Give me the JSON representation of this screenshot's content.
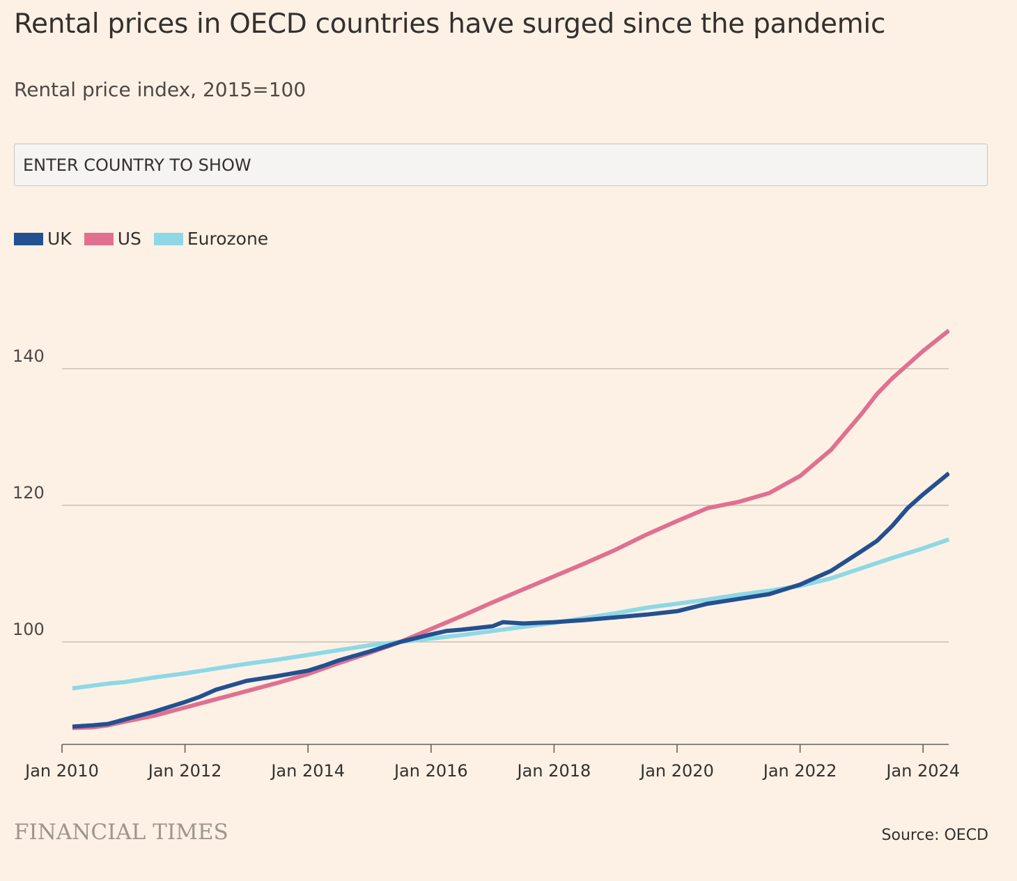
{
  "header": {
    "title": "Rental prices in OECD countries have surged since the pandemic",
    "subtitle": "Rental price index, 2015=100"
  },
  "search": {
    "placeholder": "ENTER COUNTRY TO SHOW"
  },
  "legend": [
    {
      "name": "UK",
      "color": "#235090"
    },
    {
      "name": "US",
      "color": "#e07090"
    },
    {
      "name": "Eurozone",
      "color": "#8ed8e6"
    }
  ],
  "footer": {
    "brand": "FINANCIAL TIMES",
    "source": "Source: OECD"
  },
  "chart_data": {
    "type": "line",
    "title": "Rental prices in OECD countries have surged since the pandemic",
    "subtitle": "Rental price index, 2015=100",
    "xlabel": "",
    "ylabel": "",
    "x_ticks": [
      "Jan 2010",
      "Jan 2012",
      "Jan 2014",
      "Jan 2016",
      "Jan 2018",
      "Jan 2020",
      "Jan 2022",
      "Jan 2024"
    ],
    "x_tick_years": [
      2010,
      2012,
      2014,
      2016,
      2018,
      2020,
      2022,
      2024
    ],
    "y_ticks": [
      100,
      120,
      140
    ],
    "xlim": [
      2010,
      2024.42
    ],
    "ylim": [
      85,
      150
    ],
    "grid": true,
    "legend_position": "top-left",
    "series": [
      {
        "name": "UK",
        "color": "#235090",
        "points": [
          [
            2010.17,
            87.6
          ],
          [
            2010.5,
            87.8
          ],
          [
            2010.75,
            88.0
          ],
          [
            2011.0,
            88.6
          ],
          [
            2011.5,
            89.8
          ],
          [
            2012.0,
            91.2
          ],
          [
            2012.25,
            92.0
          ],
          [
            2012.5,
            93.0
          ],
          [
            2013.0,
            94.3
          ],
          [
            2013.5,
            95.0
          ],
          [
            2014.0,
            95.8
          ],
          [
            2014.25,
            96.5
          ],
          [
            2014.5,
            97.3
          ],
          [
            2015.0,
            98.6
          ],
          [
            2015.5,
            100.0
          ],
          [
            2016.0,
            101.1
          ],
          [
            2016.25,
            101.6
          ],
          [
            2016.5,
            101.8
          ],
          [
            2017.0,
            102.3
          ],
          [
            2017.17,
            102.9
          ],
          [
            2017.5,
            102.7
          ],
          [
            2018.0,
            102.9
          ],
          [
            2018.5,
            103.2
          ],
          [
            2019.0,
            103.6
          ],
          [
            2019.5,
            104.0
          ],
          [
            2020.0,
            104.5
          ],
          [
            2020.5,
            105.6
          ],
          [
            2021.0,
            106.3
          ],
          [
            2021.5,
            107.0
          ],
          [
            2022.0,
            108.4
          ],
          [
            2022.5,
            110.4
          ],
          [
            2023.0,
            113.3
          ],
          [
            2023.25,
            114.8
          ],
          [
            2023.5,
            117.0
          ],
          [
            2023.75,
            119.6
          ],
          [
            2024.0,
            121.6
          ],
          [
            2024.42,
            124.7
          ]
        ]
      },
      {
        "name": "US",
        "color": "#e07090",
        "points": [
          [
            2010.17,
            87.4
          ],
          [
            2010.5,
            87.5
          ],
          [
            2010.75,
            87.8
          ],
          [
            2011.0,
            88.3
          ],
          [
            2011.5,
            89.2
          ],
          [
            2012.0,
            90.4
          ],
          [
            2012.5,
            91.6
          ],
          [
            2013.0,
            92.8
          ],
          [
            2013.5,
            94.0
          ],
          [
            2014.0,
            95.3
          ],
          [
            2014.5,
            96.9
          ],
          [
            2015.0,
            98.4
          ],
          [
            2015.5,
            100.0
          ],
          [
            2016.0,
            101.9
          ],
          [
            2016.5,
            103.8
          ],
          [
            2017.0,
            105.8
          ],
          [
            2017.5,
            107.7
          ],
          [
            2018.0,
            109.6
          ],
          [
            2018.5,
            111.5
          ],
          [
            2019.0,
            113.5
          ],
          [
            2019.5,
            115.7
          ],
          [
            2020.0,
            117.7
          ],
          [
            2020.5,
            119.6
          ],
          [
            2021.0,
            120.5
          ],
          [
            2021.5,
            121.8
          ],
          [
            2022.0,
            124.3
          ],
          [
            2022.5,
            128.1
          ],
          [
            2023.0,
            133.4
          ],
          [
            2023.25,
            136.3
          ],
          [
            2023.5,
            138.6
          ],
          [
            2024.0,
            142.6
          ],
          [
            2024.42,
            145.6
          ]
        ]
      },
      {
        "name": "Eurozone",
        "color": "#8ed8e6",
        "points": [
          [
            2010.17,
            93.2
          ],
          [
            2010.5,
            93.6
          ],
          [
            2010.75,
            93.9
          ],
          [
            2011.0,
            94.1
          ],
          [
            2011.5,
            94.8
          ],
          [
            2012.0,
            95.4
          ],
          [
            2012.5,
            96.1
          ],
          [
            2013.0,
            96.8
          ],
          [
            2013.5,
            97.4
          ],
          [
            2014.0,
            98.1
          ],
          [
            2014.5,
            98.8
          ],
          [
            2015.0,
            99.5
          ],
          [
            2015.5,
            100.0
          ],
          [
            2016.0,
            100.5
          ],
          [
            2016.5,
            101.0
          ],
          [
            2017.0,
            101.6
          ],
          [
            2017.5,
            102.2
          ],
          [
            2018.0,
            102.8
          ],
          [
            2018.5,
            103.5
          ],
          [
            2019.0,
            104.2
          ],
          [
            2019.5,
            105.0
          ],
          [
            2020.0,
            105.6
          ],
          [
            2020.5,
            106.2
          ],
          [
            2021.0,
            106.9
          ],
          [
            2021.5,
            107.5
          ],
          [
            2022.0,
            108.2
          ],
          [
            2022.5,
            109.3
          ],
          [
            2023.0,
            110.8
          ],
          [
            2023.5,
            112.3
          ],
          [
            2024.0,
            113.7
          ],
          [
            2024.42,
            115.0
          ]
        ]
      }
    ]
  }
}
